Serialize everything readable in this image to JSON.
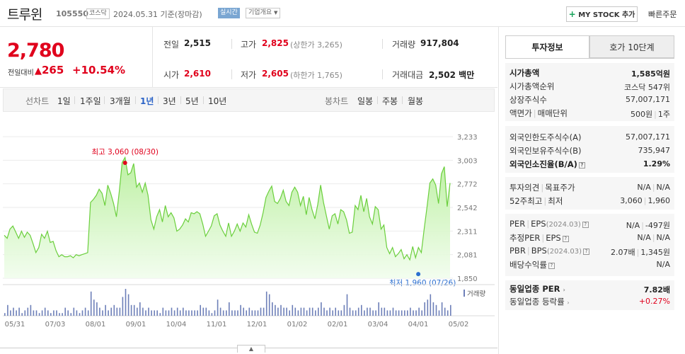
{
  "header": {
    "stock_name": "트루윈",
    "stock_code": "105550",
    "market": "코스닥",
    "date_label": "2024.05.31 기준(장마감)",
    "realtime_badge": "실시간",
    "overview_badge": "기업개요",
    "mystock_label": "MY STOCK 추가",
    "quick_order": "빠른주문"
  },
  "quote": {
    "price": "2,780",
    "change_label": "전일대비",
    "change_value": "265",
    "change_pct": "+10.54%",
    "prev_close_label": "전일",
    "prev_close": "2,515",
    "high_label": "고가",
    "high": "2,825",
    "upper_limit": "(상한가 3,265)",
    "volume_label": "거래량",
    "volume": "917,804",
    "open_label": "시가",
    "open": "2,610",
    "low_label": "저가",
    "low": "2,605",
    "lower_limit": "(하한가 1,765)",
    "amount_label": "거래대금",
    "amount": "2,502",
    "amount_unit": "백만"
  },
  "period_tabs": {
    "line_chart_label": "선차트",
    "periods": [
      "1일",
      "1주일",
      "3개월",
      "1년",
      "3년",
      "5년",
      "10년"
    ],
    "active_period": "1년",
    "candle_chart_label": "봉차트",
    "candles": [
      "일봉",
      "주봉",
      "월봉"
    ]
  },
  "chart_data": {
    "type": "area",
    "y_ticks": [
      "3,233",
      "3,003",
      "2,772",
      "2,542",
      "2,311",
      "2,081",
      "1,850"
    ],
    "ylim": [
      1850,
      3233
    ],
    "x_ticks": [
      "05/31",
      "07/03",
      "08/01",
      "09/01",
      "10/04",
      "11/01",
      "12/01",
      "01/02",
      "02/01",
      "03/04",
      "04/01",
      "05/02"
    ],
    "high_annotation": "최고 3,060 (08/30)",
    "low_annotation": "최저 1,960 (07/26)",
    "high_value": 3060,
    "low_value": 1960,
    "volume_legend": "거래량",
    "series": [
      {
        "values": [
          2270,
          2240,
          2330,
          2360,
          2300,
          2240,
          2310,
          2250,
          2300,
          2270,
          2190,
          2100,
          2150,
          2280,
          2240,
          2310,
          2200,
          2210,
          2120,
          2060,
          2080,
          2060,
          2060,
          2070,
          2050,
          2080,
          2070,
          2080,
          2090,
          2100,
          2590,
          2620,
          2660,
          2720,
          2680,
          2560,
          2760,
          2680,
          2580,
          2450,
          2700,
          2980,
          3030,
          2860,
          2880,
          2970,
          2740,
          2780,
          2690,
          2780,
          2660,
          2420,
          2330,
          2450,
          2520,
          2400,
          2560,
          2450,
          2490,
          2440,
          2310,
          2330,
          2370,
          2430,
          2400,
          2490,
          2480,
          2500,
          2480,
          2380,
          2260,
          2310,
          2360,
          2460,
          2480,
          2370,
          2310,
          2260,
          2390,
          2260,
          2310,
          2380,
          2310,
          2390,
          2350,
          2470,
          2380,
          2300,
          2290,
          2370,
          2490,
          2640,
          2700,
          2750,
          2600,
          2580,
          2630,
          2710,
          2600,
          2560,
          2690,
          2740,
          2690,
          2560,
          2650,
          2470,
          2640,
          2520,
          2430,
          2570,
          2760,
          2590,
          2460,
          2330,
          2460,
          2480,
          2380,
          2520,
          2500,
          2420,
          2290,
          2300,
          2560,
          2520,
          2660,
          2500,
          2630,
          2450,
          2380,
          2550,
          2520,
          2330,
          2370,
          2150,
          2090,
          2150,
          2060,
          2090,
          2130,
          2040,
          2080,
          2030,
          2160,
          2050,
          2150,
          2100,
          2330,
          2550,
          2780,
          2820,
          2760,
          2580,
          2870,
          2940,
          2550,
          2780
        ]
      }
    ],
    "volume": [
      1,
      4,
      2,
      3,
      2,
      3,
      1,
      2,
      3,
      4,
      2,
      2,
      1,
      2,
      3,
      2,
      1,
      2,
      2,
      1,
      1,
      3,
      2,
      1,
      3,
      2,
      1,
      2,
      3,
      2,
      9,
      6,
      5,
      3,
      2,
      4,
      2,
      3,
      4,
      3,
      3,
      7,
      10,
      8,
      4,
      4,
      3,
      5,
      3,
      2,
      3,
      2,
      2,
      2,
      1,
      3,
      2,
      2,
      3,
      2,
      3,
      2,
      3,
      2,
      2,
      2,
      2,
      2,
      4,
      3,
      3,
      2,
      1,
      2,
      6,
      3,
      2,
      2,
      5,
      2,
      2,
      2,
      4,
      3,
      2,
      3,
      2,
      2,
      2,
      3,
      3,
      9,
      8,
      5,
      4,
      3,
      4,
      3,
      3,
      2,
      4,
      3,
      2,
      3,
      3,
      2,
      3,
      3,
      2,
      3,
      5,
      3,
      2,
      3,
      2,
      3,
      2,
      2,
      4,
      8,
      3,
      2,
      2,
      3,
      4,
      2,
      3,
      3,
      2,
      2,
      5,
      3,
      3,
      2,
      2,
      3,
      2,
      2,
      2,
      2,
      2,
      3,
      2,
      2,
      3,
      2,
      5,
      6,
      8,
      5,
      4,
      2,
      5,
      3,
      2,
      4
    ]
  },
  "tabs_right": {
    "invest_info": "투자정보",
    "orderbook": "호가 10단계"
  },
  "invest_info": {
    "market_cap_label": "시가총액",
    "market_cap": "1,585억원",
    "cap_rank_label": "시가총액순위",
    "cap_rank": "코스닥 547위",
    "shares_label": "상장주식수",
    "shares": "57,007,171",
    "par_label": "액면가",
    "unit_label": "매매단위",
    "par": "500원",
    "unit": "1주",
    "foreign_limit_label": "외국인한도주식수(A)",
    "foreign_limit": "57,007,171",
    "foreign_hold_label": "외국인보유주식수(B)",
    "foreign_hold": "735,947",
    "foreign_ratio_label": "외국인소진율(B/A)",
    "foreign_ratio": "1.29%",
    "opinion_label": "투자의견",
    "target_label": "목표주가",
    "opinion": "N/A",
    "target": "N/A",
    "w52_high_label": "52주최고",
    "w52_low_label": "최저",
    "w52_high": "3,060",
    "w52_low": "1,960",
    "per_label": "PER",
    "eps_label": "EPS",
    "eps_period": "(2024.03)",
    "per": "N/A",
    "eps": "-497원",
    "est_per_label": "추정PER",
    "est_eps_label": "EPS",
    "est_per": "N/A",
    "est_eps": "N/A",
    "pbr_label": "PBR",
    "bps_label": "BPS",
    "bps_period": "(2024.03)",
    "pbr": "2.07배",
    "bps": "1,345원",
    "dividend_label": "배당수익률",
    "dividend": "N/A",
    "sector_per_label": "동일업종 PER",
    "sector_per": "7.82배",
    "sector_change_label": "동일업종 등락률",
    "sector_change": "+0.27%"
  }
}
